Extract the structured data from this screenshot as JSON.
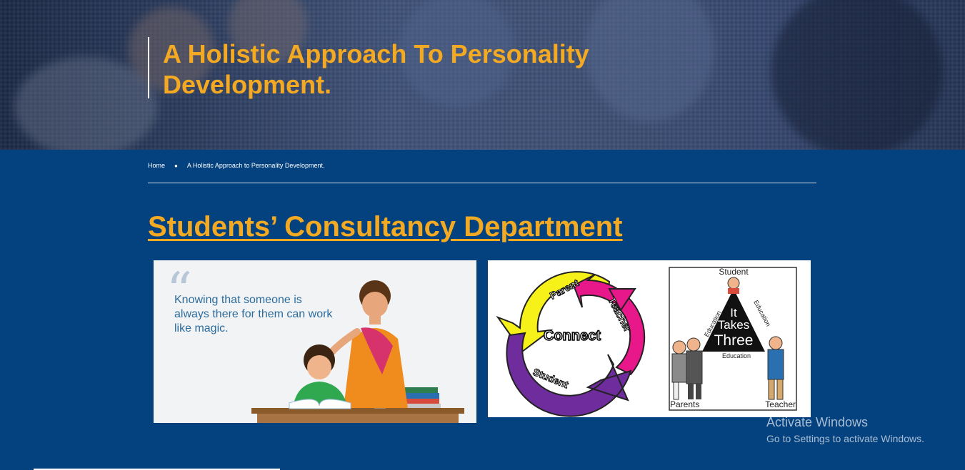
{
  "hero": {
    "title": "A Holistic Approach To Personality Development."
  },
  "breadcrumb": {
    "home": "Home",
    "separator": "●",
    "current": "A Holistic Approach to Personality Development."
  },
  "section": {
    "title": "Students’ Consultancy Department"
  },
  "card_left": {
    "quote": "Knowing that someone is always there for them can work like magic."
  },
  "card_right": {
    "cycle_labels": {
      "center": "Connect",
      "parent": "Parent",
      "teacher": "Teacher",
      "student": "Student"
    },
    "triangle_labels": {
      "top": "Student",
      "center_1": "It",
      "center_2": "Takes",
      "center_3": "Three",
      "side_left": "Education",
      "side_right": "Education",
      "base": "Education",
      "bottom_left": "Parents",
      "bottom_right": "Teacher"
    }
  },
  "watermark": {
    "title": "Activate Windows",
    "subtitle": "Go to Settings to activate Windows."
  },
  "colors": {
    "background": "#03417f",
    "accent": "#f3a922"
  }
}
